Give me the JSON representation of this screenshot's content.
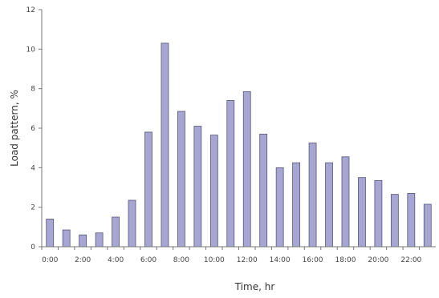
{
  "chart_data": {
    "type": "bar",
    "categories": [
      "0:00",
      "1:00",
      "2:00",
      "3:00",
      "4:00",
      "5:00",
      "6:00",
      "7:00",
      "8:00",
      "9:00",
      "10:00",
      "11:00",
      "12:00",
      "13:00",
      "14:00",
      "15:00",
      "16:00",
      "17:00",
      "18:00",
      "19:00",
      "20:00",
      "21:00",
      "22:00",
      "23:00"
    ],
    "x_tick_labels": [
      "0:00",
      "2:00",
      "4:00",
      "6:00",
      "8:00",
      "10:00",
      "12:00",
      "14:00",
      "16:00",
      "18:00",
      "20:00",
      "22:00"
    ],
    "values": [
      1.4,
      0.85,
      0.6,
      0.7,
      1.5,
      2.35,
      5.8,
      10.3,
      6.85,
      6.1,
      5.65,
      7.4,
      7.85,
      5.7,
      4.0,
      4.25,
      5.25,
      4.25,
      4.55,
      3.5,
      3.35,
      2.65,
      2.7,
      2.15
    ],
    "title": "",
    "xlabel": "Time, hr",
    "ylabel": "Load pattern, %",
    "ylim": [
      0,
      12
    ],
    "y_ticks": [
      0,
      2,
      4,
      6,
      8,
      10,
      12
    ],
    "grid": false,
    "legend": "none",
    "bar_color": "#a7a6d2",
    "bar_edge_color": "#55557a"
  }
}
